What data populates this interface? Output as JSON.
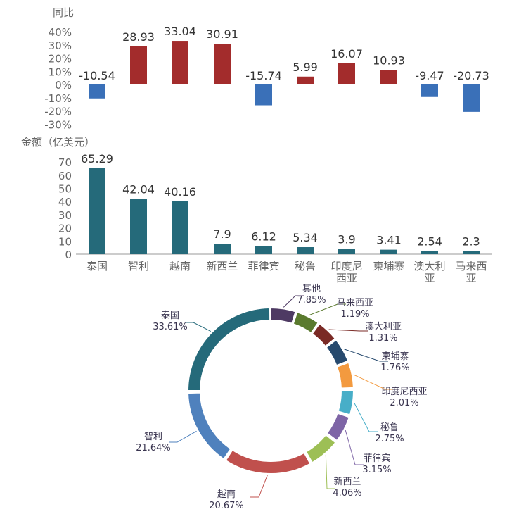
{
  "colors": {
    "positive": "#a32c2c",
    "negative": "#3a70b8",
    "amount": "#256a7a",
    "axis": "#bbbbbb",
    "tick_text": "#666666",
    "label_text": "#333333",
    "pie_label": "#3a3550"
  },
  "chart_data": [
    {
      "type": "bar",
      "ylabel": "同比",
      "categories": [
        "泰国",
        "智利",
        "越南",
        "新西兰",
        "菲律宾",
        "秘鲁",
        "印度尼西亚",
        "柬埔寨",
        "澳大利亚",
        "马来西亚"
      ],
      "values": [
        -10.54,
        28.93,
        33.04,
        30.91,
        -15.74,
        5.99,
        16.07,
        10.93,
        -9.47,
        -20.73
      ],
      "data_labels": [
        "-10.54",
        "28.93",
        "33.04",
        "30.91",
        "-15.74",
        "5.99",
        "16.07",
        "10.93",
        "-9.47",
        "-20.73"
      ],
      "yticks": [
        "40%",
        "30%",
        "20%",
        "10%",
        "0%",
        "-10%",
        "-20%",
        "-30%"
      ],
      "ylim": [
        -30,
        40
      ],
      "grid": false
    },
    {
      "type": "bar",
      "ylabel": "金额（亿美元）",
      "categories": [
        "泰国",
        "智利",
        "越南",
        "新西兰",
        "菲律宾",
        "秘鲁",
        "印度尼西亚",
        "柬埔寨",
        "澳大利亚",
        "马来西亚"
      ],
      "category_lines": [
        [
          "泰国"
        ],
        [
          "智利"
        ],
        [
          "越南"
        ],
        [
          "新西兰"
        ],
        [
          "菲律宾"
        ],
        [
          "秘鲁"
        ],
        [
          "印度尼",
          "西亚"
        ],
        [
          "柬埔寨"
        ],
        [
          "澳大利",
          "亚"
        ],
        [
          "马来西",
          "亚"
        ]
      ],
      "values": [
        65.29,
        42.04,
        40.16,
        7.9,
        6.12,
        5.34,
        3.9,
        3.41,
        2.54,
        2.3
      ],
      "data_labels": [
        "65.29",
        "42.04",
        "40.16",
        "7.9",
        "6.12",
        "5.34",
        "3.9",
        "3.41",
        "2.54",
        "2.3"
      ],
      "yticks": [
        "70",
        "60",
        "50",
        "40",
        "30",
        "20",
        "10",
        "0"
      ],
      "ylim": [
        0,
        70
      ],
      "grid": false
    },
    {
      "type": "pie",
      "donut": true,
      "slices": [
        {
          "name": "其他",
          "percent_label": "7.85%",
          "value": 7.85,
          "color": "#4e3a63"
        },
        {
          "name": "马来西亚",
          "percent_label": "1.19%",
          "value": 1.19,
          "color": "#5a7a2e"
        },
        {
          "name": "澳大利亚",
          "percent_label": "1.31%",
          "value": 1.31,
          "color": "#7a2a25"
        },
        {
          "name": "柬埔寨",
          "percent_label": "1.76%",
          "value": 1.76,
          "color": "#274a6e"
        },
        {
          "name": "印度尼西亚",
          "percent_label": "2.01%",
          "value": 2.01,
          "color": "#f39a3f"
        },
        {
          "name": "秘鲁",
          "percent_label": "2.75%",
          "value": 2.75,
          "color": "#47aec8"
        },
        {
          "name": "菲律宾",
          "percent_label": "3.15%",
          "value": 3.15,
          "color": "#7e65a6"
        },
        {
          "name": "新西兰",
          "percent_label": "4.06%",
          "value": 4.06,
          "color": "#9dbf55"
        },
        {
          "name": "越南",
          "percent_label": "20.67%",
          "value": 20.67,
          "color": "#c0504d"
        },
        {
          "name": "智利",
          "percent_label": "21.64%",
          "value": 21.64,
          "color": "#4f81bd"
        },
        {
          "name": "泰国",
          "percent_label": "33.61%",
          "value": 33.61,
          "color": "#256a7a"
        }
      ]
    }
  ]
}
